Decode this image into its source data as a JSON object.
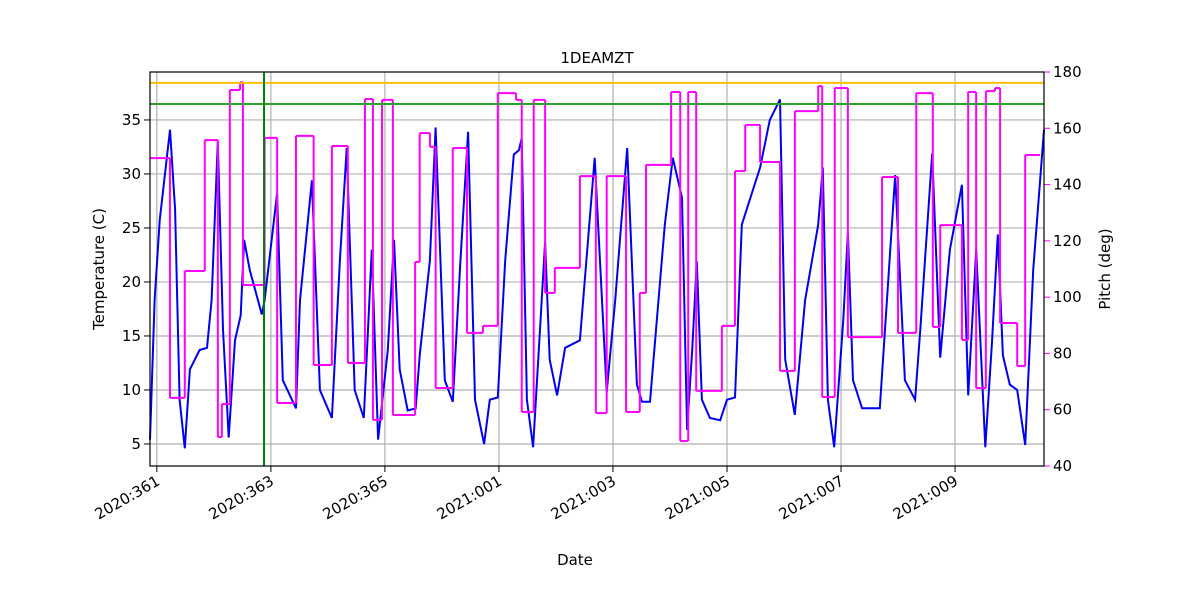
{
  "chart_data": {
    "type": "line",
    "title": "1DEAMZT",
    "xlabel": "Date",
    "ylabel": "Temperature (C)",
    "y2label": "Pitch (deg)",
    "xlim": [
      -0.12,
      15.56
    ],
    "xticks": [
      {
        "value": 0,
        "label": "2020:361"
      },
      {
        "value": 2,
        "label": "2020:363"
      },
      {
        "value": 4,
        "label": "2020:365"
      },
      {
        "value": 6,
        "label": "2021:001"
      },
      {
        "value": 8,
        "label": "2021:003"
      },
      {
        "value": 10,
        "label": "2021:005"
      },
      {
        "value": 12,
        "label": "2021:007"
      },
      {
        "value": 14,
        "label": "2021:009"
      }
    ],
    "ylim": [
      2.96,
      39.44
    ],
    "yticks": [
      5,
      10,
      15,
      20,
      25,
      30,
      35
    ],
    "y2lim": [
      40,
      180
    ],
    "y2ticks": [
      40,
      60,
      80,
      100,
      120,
      140,
      160,
      180
    ],
    "y2color": "#ff00ff",
    "grid": true,
    "hlines": [
      {
        "value": 38.43,
        "color": "#ffbf00"
      },
      {
        "value": 36.48,
        "color": "#2ca02c"
      }
    ],
    "vlines": [
      {
        "value": 1.88,
        "color": "#008000"
      }
    ],
    "series": [
      {
        "name": "Temperature",
        "color": "#0000ee",
        "axis": "y",
        "x": [
          -0.12,
          -0.04,
          0.05,
          0.23,
          0.32,
          0.4,
          0.49,
          0.58,
          0.75,
          0.88,
          0.96,
          1.07,
          1.16,
          1.26,
          1.37,
          1.47,
          1.53,
          1.63,
          1.84,
          1.89,
          2.11,
          2.21,
          2.44,
          2.51,
          2.72,
          2.86,
          3.07,
          3.21,
          3.33,
          3.47,
          3.63,
          3.77,
          3.88,
          4.05,
          4.16,
          4.26,
          4.4,
          4.54,
          4.61,
          4.79,
          4.89,
          5.05,
          5.19,
          5.32,
          5.46,
          5.58,
          5.74,
          5.84,
          5.98,
          6.11,
          6.26,
          6.35,
          6.4,
          6.49,
          6.6,
          6.72,
          6.81,
          6.89,
          7.02,
          7.16,
          7.42,
          7.68,
          7.89,
          8.04,
          8.25,
          8.42,
          8.51,
          8.65,
          8.91,
          9.05,
          9.21,
          9.3,
          9.39,
          9.47,
          9.56,
          9.7,
          9.88,
          10.0,
          10.14,
          10.26,
          10.58,
          10.75,
          10.93,
          11.02,
          11.19,
          11.37,
          11.6,
          11.68,
          11.77,
          11.88,
          12.04,
          12.12,
          12.21,
          12.37,
          12.68,
          12.95,
          13.12,
          13.3,
          13.39,
          13.6,
          13.74,
          13.91,
          14.12,
          14.23,
          14.37,
          14.53,
          14.65,
          14.75,
          14.84,
          14.96,
          15.09,
          15.23,
          15.37,
          15.56
        ],
        "values": [
          5.4,
          18.3,
          25.7,
          34.1,
          26.7,
          9.1,
          4.6,
          11.9,
          13.7,
          13.9,
          18.3,
          33.0,
          15.6,
          5.6,
          14.6,
          16.9,
          23.9,
          21.1,
          17.0,
          18.3,
          28.2,
          10.9,
          8.3,
          18.3,
          29.4,
          10.0,
          7.4,
          22.0,
          32.4,
          10.0,
          7.4,
          23.0,
          5.4,
          13.7,
          23.9,
          11.9,
          8.1,
          8.3,
          13.2,
          22.0,
          34.3,
          10.9,
          8.9,
          21.6,
          33.9,
          9.1,
          5.0,
          9.1,
          9.3,
          22.0,
          31.8,
          32.2,
          33.3,
          9.1,
          4.7,
          15.6,
          23.7,
          12.8,
          9.5,
          13.9,
          14.6,
          31.5,
          9.8,
          18.3,
          32.4,
          10.5,
          8.9,
          8.9,
          25.3,
          31.5,
          27.8,
          6.3,
          13.7,
          21.9,
          9.1,
          7.4,
          7.2,
          9.1,
          9.3,
          25.3,
          30.6,
          35.0,
          36.9,
          12.8,
          7.7,
          18.3,
          25.3,
          30.6,
          9.1,
          4.7,
          16.5,
          24.6,
          10.9,
          8.3,
          8.3,
          29.9,
          10.9,
          9.1,
          15.6,
          31.9,
          13.0,
          23.0,
          29.0,
          9.5,
          23.0,
          4.7,
          14.6,
          24.4,
          13.2,
          10.5,
          10.0,
          4.9,
          21.1,
          34.1
        ]
      },
      {
        "name": "Pitch",
        "color": "#ff00ff",
        "axis": "y2",
        "step": "post",
        "x": [
          -0.12,
          0.23,
          0.49,
          0.84,
          1.07,
          1.14,
          1.28,
          1.46,
          1.51,
          1.89,
          2.11,
          2.44,
          2.75,
          3.07,
          3.35,
          3.65,
          3.79,
          3.95,
          4.14,
          4.53,
          4.61,
          4.79,
          4.89,
          5.19,
          5.44,
          5.72,
          5.98,
          6.3,
          6.4,
          6.61,
          6.81,
          6.98,
          7.42,
          7.7,
          7.89,
          8.23,
          8.47,
          8.58,
          9.02,
          9.18,
          9.32,
          9.46,
          9.91,
          10.14,
          10.32,
          10.58,
          10.93,
          11.19,
          11.6,
          11.67,
          11.89,
          12.12,
          12.72,
          13.0,
          13.32,
          13.61,
          13.74,
          14.12,
          14.23,
          14.37,
          14.54,
          14.7,
          14.79,
          15.09,
          15.23,
          15.49
        ],
        "values": [
          149.4,
          64.2,
          109.3,
          155.8,
          50.3,
          62.0,
          173.6,
          176.4,
          104.3,
          156.6,
          62.4,
          157.3,
          75.9,
          153.7,
          76.6,
          170.4,
          56.4,
          170.1,
          58.1,
          112.5,
          158.3,
          153.4,
          67.7,
          153.0,
          87.3,
          89.8,
          172.5,
          170.1,
          59.2,
          170.1,
          101.5,
          110.4,
          143.0,
          58.8,
          143.0,
          59.2,
          101.5,
          147.0,
          172.9,
          48.9,
          172.9,
          66.7,
          89.8,
          144.8,
          161.2,
          148.0,
          73.8,
          166.1,
          175.0,
          64.5,
          174.3,
          85.8,
          142.7,
          87.3,
          172.5,
          89.4,
          125.6,
          84.8,
          172.9,
          67.7,
          173.2,
          174.3,
          90.8,
          75.5,
          150.5,
          150.5
        ]
      }
    ]
  }
}
